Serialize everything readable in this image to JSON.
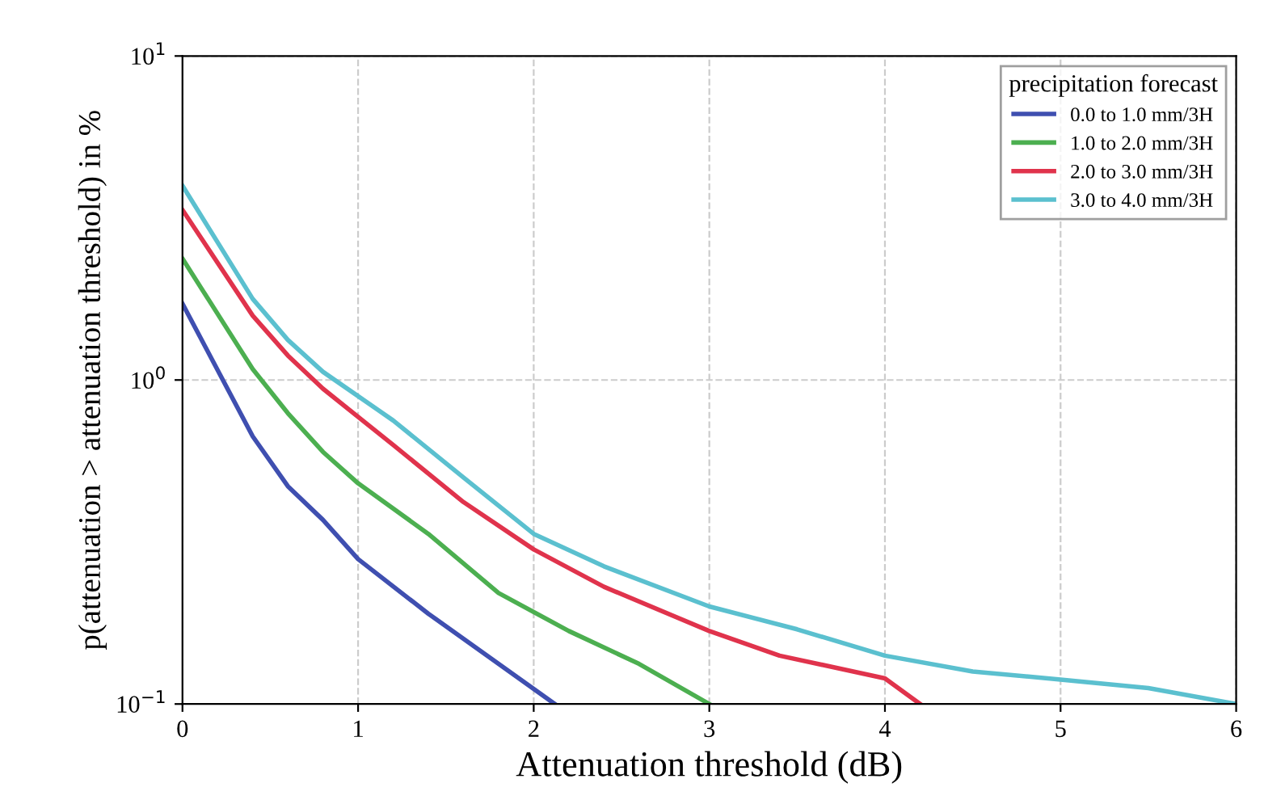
{
  "chart_data": {
    "type": "line",
    "xlabel": "Attenuation threshold (dB)",
    "ylabel": "p(attenuation > attenuation threshold) in %",
    "legend_title": "precipitation forecast",
    "legend": "top right",
    "grid": true,
    "line_style": "solid",
    "log": "y",
    "xlim": [
      0,
      6
    ],
    "xticks": [
      0,
      1,
      2,
      3,
      4,
      5,
      6
    ],
    "ylim": [
      0.1,
      10
    ],
    "yticks": [
      {
        "value": 0.1,
        "label": "10$^{−1}$"
      },
      {
        "value": 1,
        "label": "10$^{0}$"
      },
      {
        "value": 10,
        "label": "10$^{1}$"
      }
    ],
    "series": [
      {
        "name": "0.0 to 1.0 mm/3H",
        "color": "#3f4fb0",
        "x": [
          0,
          0.4,
          0.6,
          0.8,
          1.0,
          1.4,
          1.8,
          2.12
        ],
        "values": [
          1.72,
          0.67,
          0.47,
          0.37,
          0.28,
          0.19,
          0.133,
          0.1
        ]
      },
      {
        "name": "1.0 to 2.0 mm/3H",
        "color": "#4caf50",
        "x": [
          0,
          0.4,
          0.6,
          0.8,
          1.0,
          1.4,
          1.8,
          2.2,
          2.6,
          3.0
        ],
        "values": [
          2.37,
          1.08,
          0.79,
          0.6,
          0.48,
          0.335,
          0.22,
          0.168,
          0.133,
          0.1
        ]
      },
      {
        "name": "2.0 to 3.0 mm/3H",
        "color": "#e0334c",
        "x": [
          0,
          0.4,
          0.6,
          0.8,
          1.2,
          1.6,
          2.0,
          2.4,
          3.0,
          3.4,
          4.0,
          4.2
        ],
        "values": [
          3.35,
          1.58,
          1.19,
          0.94,
          0.63,
          0.42,
          0.3,
          0.23,
          0.168,
          0.141,
          0.12,
          0.1
        ]
      },
      {
        "name": "3.0 to 4.0 mm/3H",
        "color": "#5bc0cf",
        "x": [
          0,
          0.4,
          0.6,
          0.8,
          1.2,
          1.6,
          2.0,
          2.4,
          3.0,
          3.5,
          4.0,
          4.5,
          5.0,
          5.5,
          6.0
        ],
        "values": [
          3.98,
          1.78,
          1.33,
          1.06,
          0.75,
          0.5,
          0.335,
          0.266,
          0.2,
          0.17,
          0.141,
          0.126,
          0.119,
          0.112,
          0.1
        ]
      }
    ]
  }
}
